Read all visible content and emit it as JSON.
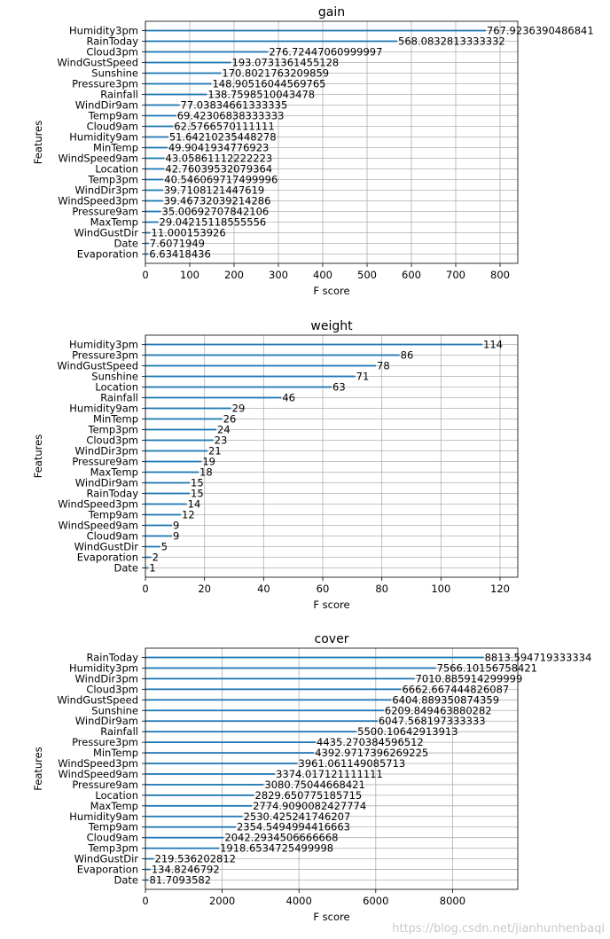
{
  "chart_data": [
    {
      "type": "bar",
      "orientation": "horizontal",
      "title": "gain",
      "xlabel": "F score",
      "ylabel": "Features",
      "xlim": [
        0,
        840
      ],
      "xticks": [
        0,
        100,
        200,
        300,
        400,
        500,
        600,
        700,
        800
      ],
      "grid": true,
      "categories": [
        "Humidity3pm",
        "RainToday",
        "Cloud3pm",
        "WindGustSpeed",
        "Sunshine",
        "Pressure3pm",
        "Rainfall",
        "WindDir9am",
        "Temp9am",
        "Cloud9am",
        "Humidity9am",
        "MinTemp",
        "WindSpeed9am",
        "Location",
        "Temp3pm",
        "WindDir3pm",
        "WindSpeed3pm",
        "Pressure9am",
        "MaxTemp",
        "WindGustDir",
        "Date",
        "Evaporation"
      ],
      "values": [
        767.9236390486841,
        568.0832813333332,
        276.72447060999997,
        193.0731361455128,
        170.8021763209859,
        148.90516044569765,
        138.7598510043478,
        77.03834661333335,
        69.42306838333333,
        62.5766570111111,
        51.64210235448278,
        49.9041934776923,
        43.05861112222223,
        42.76039532079364,
        40.546069717499996,
        39.7108121447619,
        39.46732039214286,
        35.00692707842106,
        29.04215118555556,
        11.000153926,
        7.6071949,
        6.63418436
      ],
      "labels": [
        "767.9236390486841",
        "568.0832813333332",
        "276.72447060999997",
        "193.0731361455128",
        "170.8021763209859",
        "148.90516044569765",
        "138.7598510043478",
        "77.03834661333335",
        "69.42306838333333",
        "62.5766570111111",
        "51.64210235448278",
        "49.9041934776923",
        "43.05861112222223",
        "42.76039532079364",
        "40.546069717499996",
        "39.7108121447619",
        "39.46732039214286",
        "35.00692707842106",
        "29.04215118555556",
        "11.000153926",
        "7.6071949",
        "6.63418436"
      ]
    },
    {
      "type": "bar",
      "orientation": "horizontal",
      "title": "weight",
      "xlabel": "F score",
      "ylabel": "Features",
      "xlim": [
        0,
        126
      ],
      "xticks": [
        0,
        20,
        40,
        60,
        80,
        100,
        120
      ],
      "grid": true,
      "categories": [
        "Humidity3pm",
        "Pressure3pm",
        "WindGustSpeed",
        "Sunshine",
        "Location",
        "Rainfall",
        "Humidity9am",
        "MinTemp",
        "Temp3pm",
        "Cloud3pm",
        "WindDir3pm",
        "Pressure9am",
        "MaxTemp",
        "WindDir9am",
        "RainToday",
        "WindSpeed3pm",
        "Temp9am",
        "WindSpeed9am",
        "Cloud9am",
        "WindGustDir",
        "Evaporation",
        "Date"
      ],
      "values": [
        114,
        86,
        78,
        71,
        63,
        46,
        29,
        26,
        24,
        23,
        21,
        19,
        18,
        15,
        15,
        14,
        12,
        9,
        9,
        5,
        2,
        1
      ],
      "labels": [
        "114",
        "86",
        "78",
        "71",
        "63",
        "46",
        "29",
        "26",
        "24",
        "23",
        "21",
        "19",
        "18",
        "15",
        "15",
        "14",
        "12",
        "9",
        "9",
        "5",
        "2",
        "1"
      ]
    },
    {
      "type": "bar",
      "orientation": "horizontal",
      "title": "cover",
      "xlabel": "F score",
      "ylabel": "Features",
      "xlim": [
        0,
        9700
      ],
      "xticks": [
        0,
        2000,
        4000,
        6000,
        8000
      ],
      "grid": true,
      "categories": [
        "RainToday",
        "Humidity3pm",
        "WindDir3pm",
        "Cloud3pm",
        "WindGustSpeed",
        "Sunshine",
        "WindDir9am",
        "Rainfall",
        "Pressure3pm",
        "MinTemp",
        "WindSpeed3pm",
        "WindSpeed9am",
        "Pressure9am",
        "Location",
        "MaxTemp",
        "Humidity9am",
        "Temp9am",
        "Cloud9am",
        "Temp3pm",
        "WindGustDir",
        "Evaporation",
        "Date"
      ],
      "values": [
        8813.594719333334,
        7566.10156758421,
        7010.885914299999,
        6662.667444826087,
        6404.889350874359,
        6209.849463880282,
        6047.568197333333,
        5500.10642913913,
        4435.270384596512,
        4392.9717396269225,
        3961.061149085713,
        3374.017121111111,
        3080.75044668421,
        2829.650775185715,
        2774.9090082427774,
        2530.425241746207,
        2354.5494994416663,
        2042.2934506666668,
        1918.6534725499998,
        219.536202812,
        134.8246792,
        81.7093582
      ],
      "labels": [
        "8813.594719333334",
        "7566.10156758421",
        "7010.885914299999",
        "6662.667444826087",
        "6404.889350874359",
        "6209.849463880282",
        "6047.568197333333",
        "5500.10642913913",
        "4435.270384596512",
        "4392.9717396269225",
        "3961.061149085713",
        "3374.017121111111",
        "3080.75044668421",
        "2829.650775185715",
        "2774.9090082427774",
        "2530.425241746207",
        "2354.5494994416663",
        "2042.2934506666668",
        "1918.6534725499998",
        "219.536202812",
        "134.8246792",
        "81.7093582"
      ]
    }
  ],
  "watermark": "https://blog.csdn.net/jianhunhenbaqi",
  "colors": {
    "bar": "#1f77b4",
    "grid": "#b0b0b0",
    "axis": "#000000"
  }
}
